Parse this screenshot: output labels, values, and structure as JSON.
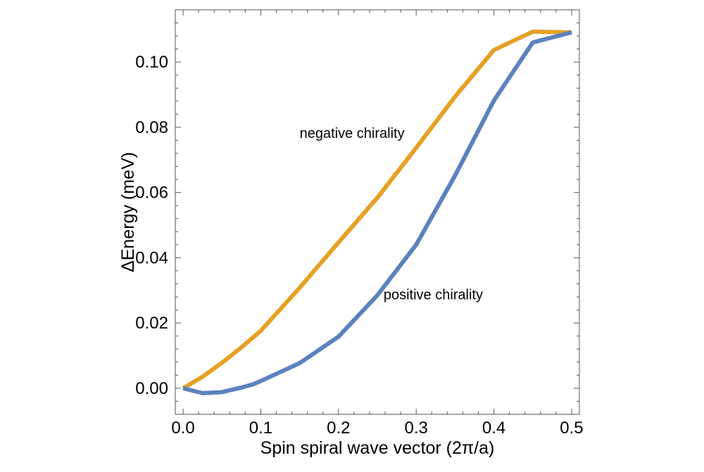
{
  "chart_data": {
    "type": "line",
    "title": "",
    "xlabel": "Spin spiral wave vector (2π/a)",
    "ylabel": "ΔEnergy (meV)",
    "xlim": [
      -0.01,
      0.51
    ],
    "ylim": [
      -0.008,
      0.116
    ],
    "xticks": [
      0.0,
      0.1,
      0.2,
      0.3,
      0.4,
      0.5
    ],
    "xtick_labels": [
      "0.0",
      "0.1",
      "0.2",
      "0.3",
      "0.4",
      "0.5"
    ],
    "yticks": [
      0.0,
      0.02,
      0.04,
      0.06,
      0.08,
      0.1
    ],
    "ytick_labels": [
      "0.00",
      "0.02",
      "0.04",
      "0.06",
      "0.08",
      "0.10"
    ],
    "grid": false,
    "frame": true,
    "series": [
      {
        "key": "negative",
        "color": "#E6A024",
        "x": [
          0.0,
          0.025,
          0.05,
          0.075,
          0.1,
          0.15,
          0.2,
          0.25,
          0.3,
          0.35,
          0.4,
          0.45,
          0.5
        ],
        "y": [
          0.0,
          0.0035,
          0.0078,
          0.0125,
          0.0176,
          0.0308,
          0.0447,
          0.0584,
          0.0737,
          0.0894,
          0.1037,
          0.1093,
          0.1091
        ]
      },
      {
        "key": "positive",
        "color": "#5B82BE",
        "x": [
          0.0,
          0.025,
          0.05,
          0.075,
          0.09,
          0.1,
          0.15,
          0.2,
          0.25,
          0.3,
          0.35,
          0.4,
          0.45,
          0.5
        ],
        "y": [
          0.0,
          -0.0015,
          -0.0012,
          0.0002,
          0.0012,
          0.0022,
          0.0077,
          0.0158,
          0.0285,
          0.044,
          0.0652,
          0.0882,
          0.106,
          0.1091
        ]
      }
    ],
    "annotations": [
      {
        "text": "negative chirality",
        "x": 0.15,
        "y": 0.078
      },
      {
        "text": "positive chirality",
        "x": 0.258,
        "y": 0.0285
      }
    ]
  }
}
